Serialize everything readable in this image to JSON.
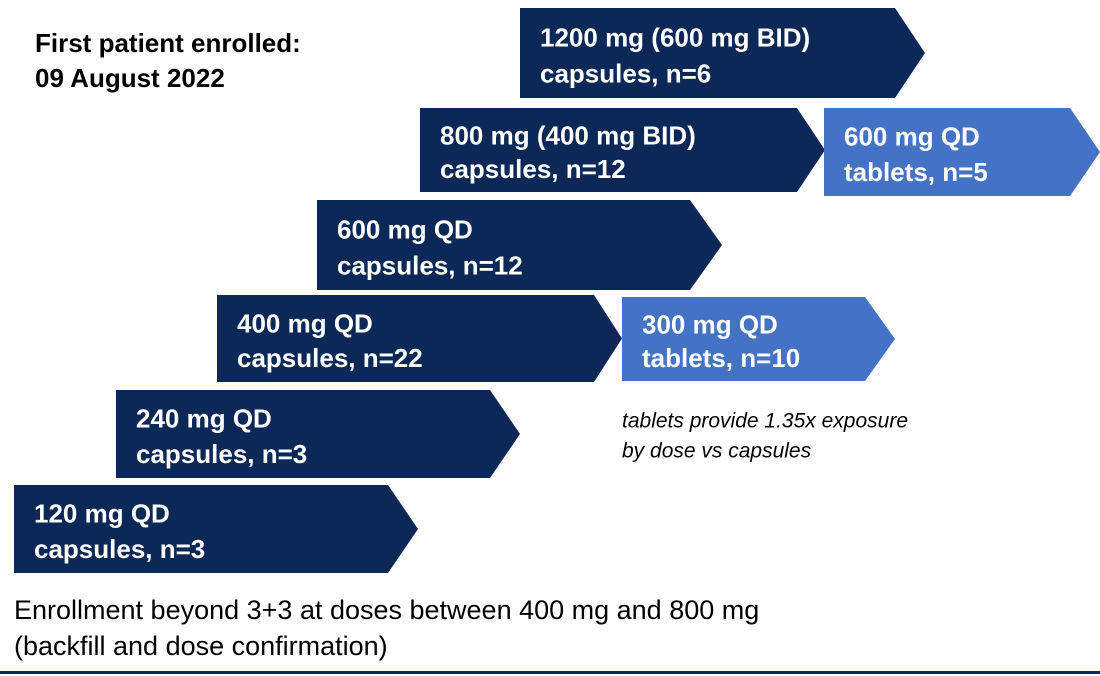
{
  "header": {
    "lines": [
      "First patient enrolled:",
      "09 August 2022"
    ]
  },
  "steps": [
    {
      "lines": [
        "1200 mg (600 mg BID)",
        "capsules, n=6"
      ],
      "color": "#0c2857"
    },
    {
      "lines": [
        "800 mg (400 mg BID)",
        "capsules, n=12"
      ],
      "color": "#0c2857"
    },
    {
      "lines": [
        "600 mg QD",
        "tablets, n=5"
      ],
      "color": "#4472c4"
    },
    {
      "lines": [
        "600 mg QD",
        "capsules, n=12"
      ],
      "color": "#0c2857"
    },
    {
      "lines": [
        "400 mg QD",
        "capsules, n=22"
      ],
      "color": "#0c2857"
    },
    {
      "lines": [
        "300 mg QD",
        "tablets, n=10"
      ],
      "color": "#4472c4"
    },
    {
      "lines": [
        "240 mg QD",
        "capsules, n=3"
      ],
      "color": "#0c2857"
    },
    {
      "lines": [
        "120 mg QD",
        "capsules, n=3"
      ],
      "color": "#0c2857"
    }
  ],
  "note": {
    "lines": [
      "tablets provide 1.35x exposure",
      "by dose vs capsules"
    ]
  },
  "footer": {
    "lines": [
      "Enrollment beyond 3+3 at doses between 400 mg and 800 mg",
      "(backfill and dose confirmation)"
    ]
  }
}
